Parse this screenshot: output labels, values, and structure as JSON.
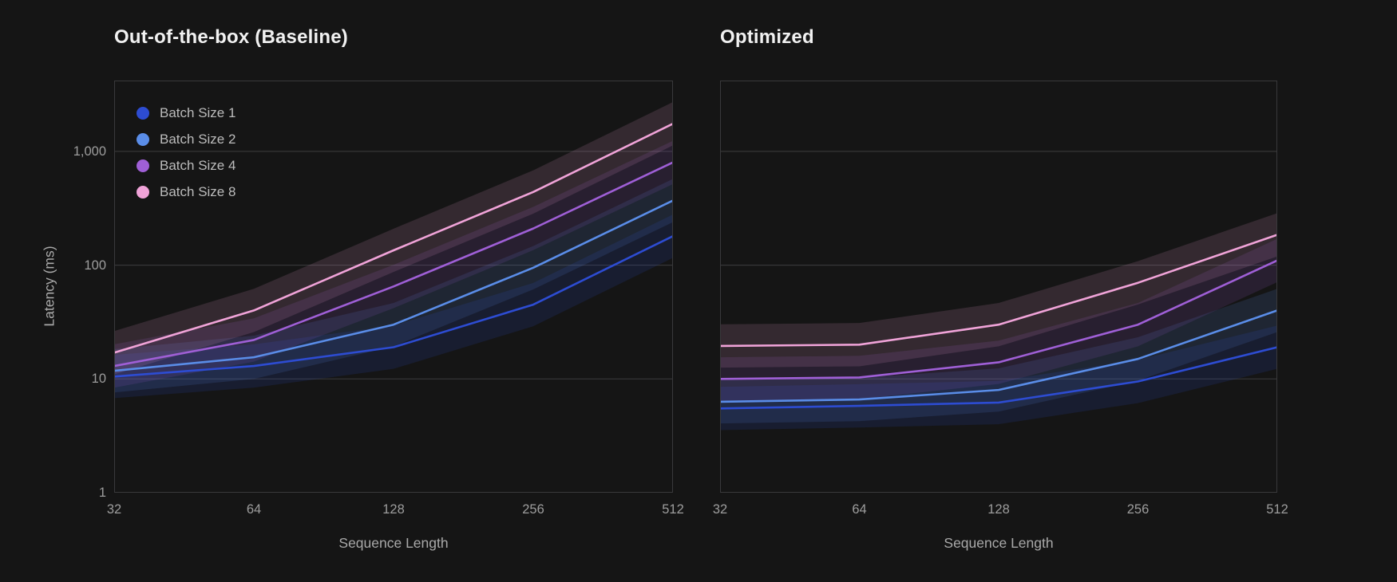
{
  "page": {
    "background": "#151515",
    "title_color": "#f1f1f1",
    "grid_color": "#3d3d3f",
    "border_color": "#39393b",
    "tick_color": "#9d9d9d",
    "axis_label_color": "#a9a9a9",
    "legend_text_color": "#bcbcbc"
  },
  "axes": {
    "x_label": "Sequence Length",
    "y_label": "Latency (ms)",
    "x_tick_labels": [
      "32",
      "64",
      "128",
      "256",
      "512"
    ],
    "y_tick_labels": [
      "1",
      "10",
      "100",
      "1,000"
    ],
    "y_tick_values": [
      1,
      10,
      100,
      1000
    ]
  },
  "legend": {
    "items": [
      {
        "label": "Batch Size 1",
        "color": "#2d4cd2"
      },
      {
        "label": "Batch Size 2",
        "color": "#5a8de8"
      },
      {
        "label": "Batch Size 4",
        "color": "#9f5fd6"
      },
      {
        "label": "Batch Size 8",
        "color": "#f0a3d8"
      }
    ]
  },
  "chart_data": [
    {
      "type": "line",
      "title": "Out-of-the-box (Baseline)",
      "xlabel": "Sequence Length",
      "ylabel": "Latency (ms)",
      "xscale": "log2",
      "yscale": "log10",
      "x": [
        32,
        64,
        128,
        256,
        512
      ],
      "ylim": [
        1,
        4300
      ],
      "gridline_values": [
        10,
        100,
        1000
      ],
      "grid": "horizontal-only",
      "legend_position": "top-left-inside",
      "band_note": "shaded uncertainty band around each line, approx. line value multiplied/divided by band_factor",
      "band_factor": 1.55,
      "series": [
        {
          "name": "Batch Size 1",
          "color": "#2d4cd2",
          "values": [
            10.5,
            13,
            19,
            45,
            180
          ]
        },
        {
          "name": "Batch Size 2",
          "color": "#5a8de8",
          "values": [
            11.8,
            15.5,
            30,
            95,
            370
          ]
        },
        {
          "name": "Batch Size 4",
          "color": "#9f5fd6",
          "values": [
            13,
            22,
            65,
            210,
            800
          ]
        },
        {
          "name": "Batch Size 8",
          "color": "#f0a3d8",
          "values": [
            17,
            40,
            135,
            440,
            1750
          ]
        }
      ]
    },
    {
      "type": "line",
      "title": "Optimized",
      "xlabel": "Sequence Length",
      "ylabel": "Latency (ms)",
      "xscale": "log2",
      "yscale": "log10",
      "x": [
        32,
        64,
        128,
        256,
        512
      ],
      "ylim": [
        1,
        4300
      ],
      "gridline_values": [
        10,
        100,
        1000
      ],
      "grid": "horizontal-only",
      "legend_position": "none",
      "band_factor": 1.55,
      "series": [
        {
          "name": "Batch Size 1",
          "color": "#2d4cd2",
          "values": [
            5.5,
            5.8,
            6.2,
            9.5,
            19
          ]
        },
        {
          "name": "Batch Size 2",
          "color": "#5a8de8",
          "values": [
            6.3,
            6.6,
            8,
            15,
            40
          ]
        },
        {
          "name": "Batch Size 4",
          "color": "#9f5fd6",
          "values": [
            10,
            10.3,
            14,
            30,
            110
          ]
        },
        {
          "name": "Batch Size 8",
          "color": "#f0a3d8",
          "values": [
            19.5,
            20,
            30,
            70,
            185
          ]
        }
      ]
    }
  ]
}
